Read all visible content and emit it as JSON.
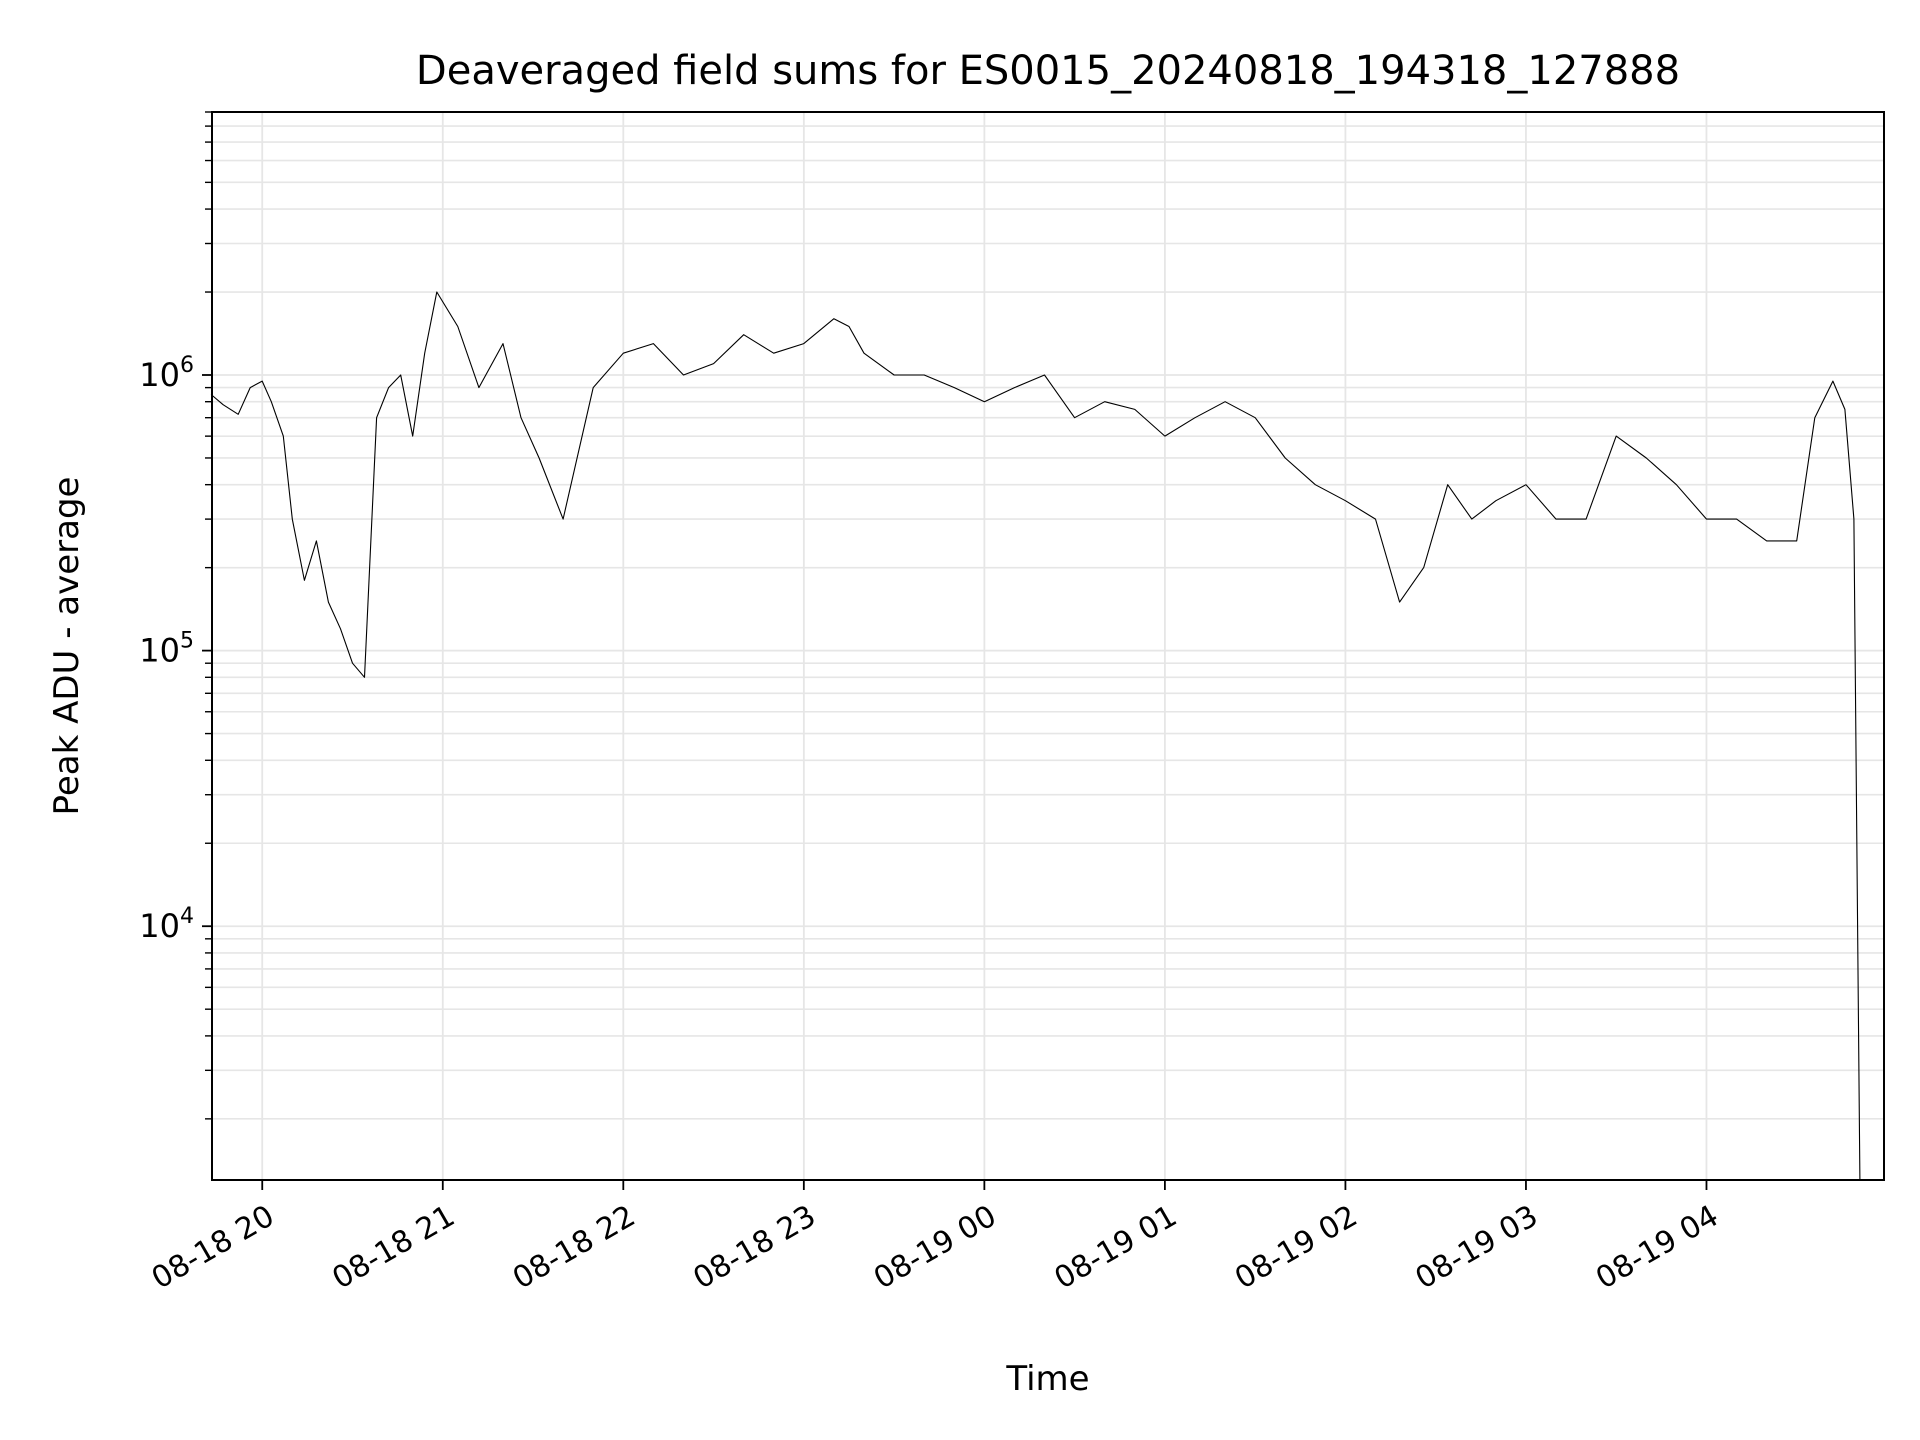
{
  "chart_data": {
    "type": "line",
    "title": "Deaveraged field sums for ES0015_20240818_194318_127888",
    "xlabel": "Time",
    "ylabel": "Peak ADU - average",
    "y_scale": "log",
    "ylim": [
      1200,
      9000000
    ],
    "xlim": [
      "2024-08-18 19:43:18",
      "2024-08-19 04:59:00"
    ],
    "grid": true,
    "x_ticks": [
      {
        "t": "2024-08-18 20:00",
        "label": "08-18 20"
      },
      {
        "t": "2024-08-18 21:00",
        "label": "08-18 21"
      },
      {
        "t": "2024-08-18 22:00",
        "label": "08-18 22"
      },
      {
        "t": "2024-08-18 23:00",
        "label": "08-18 23"
      },
      {
        "t": "2024-08-19 00:00",
        "label": "08-19 00"
      },
      {
        "t": "2024-08-19 01:00",
        "label": "08-19 01"
      },
      {
        "t": "2024-08-19 02:00",
        "label": "08-19 02"
      },
      {
        "t": "2024-08-19 03:00",
        "label": "08-19 03"
      },
      {
        "t": "2024-08-19 04:00",
        "label": "08-19 04"
      }
    ],
    "y_ticks": [
      {
        "value": 10000,
        "base": "10",
        "exp": "4"
      },
      {
        "value": 100000,
        "base": "10",
        "exp": "5"
      },
      {
        "value": 1000000,
        "base": "10",
        "exp": "6"
      }
    ],
    "line_color": "#000000",
    "series": [
      {
        "x": [
          "2024-08-18 19:43",
          "2024-08-18 19:47",
          "2024-08-18 19:52",
          "2024-08-18 19:56",
          "2024-08-18 20:00",
          "2024-08-18 20:03",
          "2024-08-18 20:07",
          "2024-08-18 20:10",
          "2024-08-18 20:14",
          "2024-08-18 20:18",
          "2024-08-18 20:22",
          "2024-08-18 20:26",
          "2024-08-18 20:30",
          "2024-08-18 20:34",
          "2024-08-18 20:38",
          "2024-08-18 20:42",
          "2024-08-18 20:46",
          "2024-08-18 20:50",
          "2024-08-18 20:54",
          "2024-08-18 20:58",
          "2024-08-18 21:05",
          "2024-08-18 21:12",
          "2024-08-18 21:20",
          "2024-08-18 21:26",
          "2024-08-18 21:32",
          "2024-08-18 21:40",
          "2024-08-18 21:50",
          "2024-08-18 22:00",
          "2024-08-18 22:10",
          "2024-08-18 22:20",
          "2024-08-18 22:30",
          "2024-08-18 22:40",
          "2024-08-18 22:50",
          "2024-08-18 23:00",
          "2024-08-18 23:10",
          "2024-08-18 23:15",
          "2024-08-18 23:20",
          "2024-08-18 23:30",
          "2024-08-18 23:40",
          "2024-08-18 23:50",
          "2024-08-19 00:00",
          "2024-08-19 00:10",
          "2024-08-19 00:20",
          "2024-08-19 00:30",
          "2024-08-19 00:40",
          "2024-08-19 00:50",
          "2024-08-19 01:00",
          "2024-08-19 01:10",
          "2024-08-19 01:20",
          "2024-08-19 01:30",
          "2024-08-19 01:40",
          "2024-08-19 01:50",
          "2024-08-19 02:00",
          "2024-08-19 02:10",
          "2024-08-19 02:18",
          "2024-08-19 02:26",
          "2024-08-19 02:34",
          "2024-08-19 02:42",
          "2024-08-19 02:50",
          "2024-08-19 03:00",
          "2024-08-19 03:10",
          "2024-08-19 03:20",
          "2024-08-19 03:30",
          "2024-08-19 03:40",
          "2024-08-19 03:50",
          "2024-08-19 04:00",
          "2024-08-19 04:10",
          "2024-08-19 04:20",
          "2024-08-19 04:30",
          "2024-08-19 04:36",
          "2024-08-19 04:42",
          "2024-08-19 04:46",
          "2024-08-19 04:49",
          "2024-08-19 04:51"
        ],
        "values": [
          850000,
          780000,
          720000,
          900000,
          950000,
          800000,
          600000,
          300000,
          180000,
          250000,
          150000,
          120000,
          90000,
          80000,
          700000,
          900000,
          1000000,
          600000,
          1200000,
          2000000,
          1500000,
          900000,
          1300000,
          700000,
          500000,
          300000,
          900000,
          1200000,
          1300000,
          1000000,
          1100000,
          1400000,
          1200000,
          1300000,
          1600000,
          1500000,
          1200000,
          1000000,
          1000000,
          900000,
          800000,
          900000,
          1000000,
          700000,
          800000,
          750000,
          600000,
          700000,
          800000,
          700000,
          500000,
          400000,
          350000,
          300000,
          150000,
          200000,
          400000,
          300000,
          350000,
          400000,
          300000,
          300000,
          600000,
          500000,
          400000,
          300000,
          300000,
          250000,
          250000,
          700000,
          950000,
          750000,
          300000,
          1200
        ]
      }
    ]
  }
}
